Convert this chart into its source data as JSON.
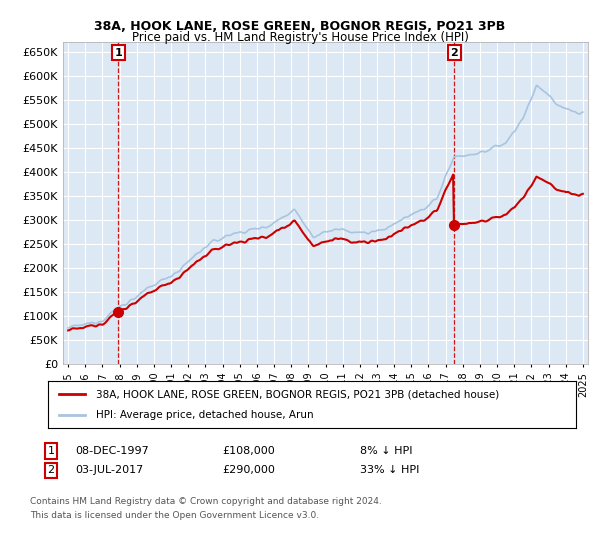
{
  "title": "38A, HOOK LANE, ROSE GREEN, BOGNOR REGIS, PO21 3PB",
  "subtitle": "Price paid vs. HM Land Registry's House Price Index (HPI)",
  "ylim": [
    0,
    670000
  ],
  "yticks": [
    0,
    50000,
    100000,
    150000,
    200000,
    250000,
    300000,
    350000,
    400000,
    450000,
    500000,
    550000,
    600000,
    650000
  ],
  "ytick_labels": [
    "£0",
    "£50K",
    "£100K",
    "£150K",
    "£200K",
    "£250K",
    "£300K",
    "£350K",
    "£400K",
    "£450K",
    "£500K",
    "£550K",
    "£600K",
    "£650K"
  ],
  "hpi_color": "#a8c4e0",
  "price_color": "#cc0000",
  "point1_date": 1997.92,
  "point1_price": 108000,
  "point2_date": 2017.5,
  "point2_price": 290000,
  "legend_label_price": "38A, HOOK LANE, ROSE GREEN, BOGNOR REGIS, PO21 3PB (detached house)",
  "legend_label_hpi": "HPI: Average price, detached house, Arun",
  "annotation1_label": "1",
  "annotation2_label": "2",
  "footnote3": "Contains HM Land Registry data © Crown copyright and database right 2024.",
  "footnote4": "This data is licensed under the Open Government Licence v3.0.",
  "plot_bg_color": "#dce9f5",
  "fig_bg_color": "#ffffff",
  "grid_color": "#ffffff"
}
